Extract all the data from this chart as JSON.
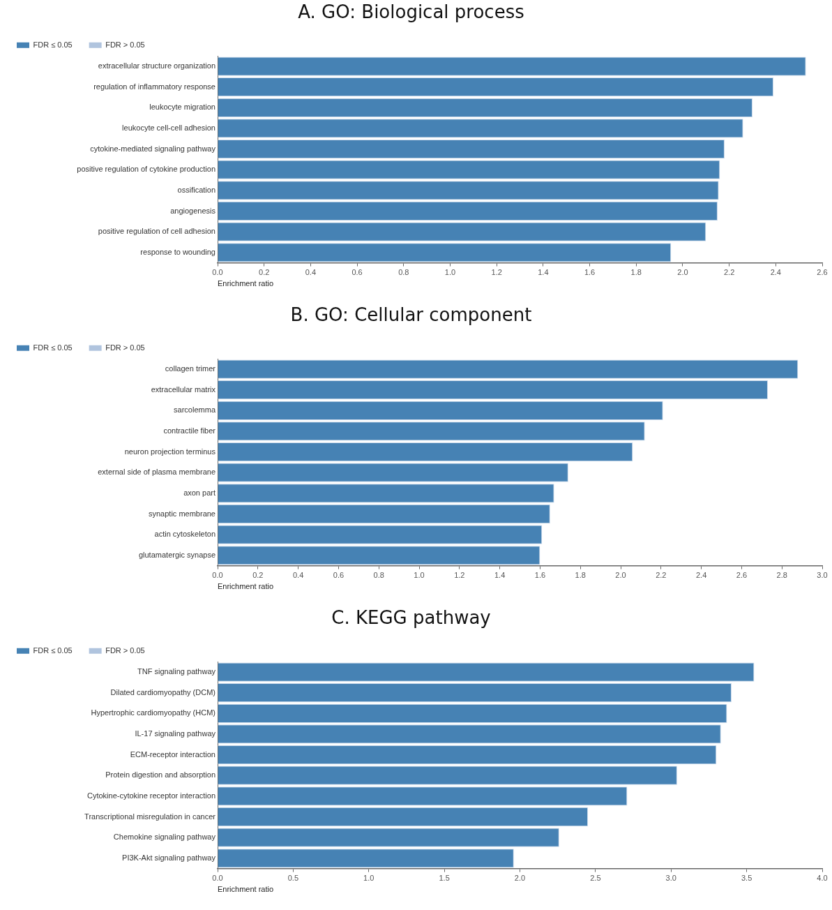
{
  "chart_data": [
    {
      "type": "bar",
      "orientation": "horizontal",
      "title": "A. GO: Biological process",
      "xlabel": "Enrichment ratio",
      "legend": "top left",
      "grid": false,
      "categories": [
        "extracellular structure organization",
        "regulation of inflammatory response",
        "leukocyte migration",
        "leukocyte cell-cell adhesion",
        "cytokine-mediated signaling pathway",
        "positive regulation of cytokine production",
        "ossification",
        "angiogenesis",
        "positive regulation of cell adhesion",
        "response to wounding"
      ],
      "series": [
        {
          "name": "FDR ≤ 0.05",
          "color": "#4682b4",
          "values": [
            2.53,
            2.39,
            2.3,
            2.26,
            2.18,
            2.16,
            2.155,
            2.15,
            2.1,
            1.95
          ]
        },
        {
          "name": "FDR > 0.05",
          "color": "#b0c4de",
          "values": [
            null,
            null,
            null,
            null,
            null,
            null,
            null,
            null,
            null,
            null
          ]
        }
      ],
      "xlim": [
        0,
        2.6
      ],
      "xticks": [
        {
          "value": 0,
          "label": "0.0"
        },
        {
          "value": 0.2,
          "label": "0.2"
        },
        {
          "value": 0.4,
          "label": "0.4"
        },
        {
          "value": 0.6,
          "label": "0.6"
        },
        {
          "value": 0.8,
          "label": "0.8"
        },
        {
          "value": 1,
          "label": "1.0"
        },
        {
          "value": 1.2,
          "label": "1.2"
        },
        {
          "value": 1.4,
          "label": "1.4"
        },
        {
          "value": 1.6,
          "label": "1.6"
        },
        {
          "value": 1.8,
          "label": "1.8"
        },
        {
          "value": 2,
          "label": "2.0"
        },
        {
          "value": 2.2,
          "label": "2.2"
        },
        {
          "value": 2.4,
          "label": "2.4"
        },
        {
          "value": 2.6,
          "label": "2.6"
        }
      ]
    },
    {
      "type": "bar",
      "orientation": "horizontal",
      "title": "B. GO: Cellular component",
      "xlabel": "Enrichment ratio",
      "legend": "top left",
      "grid": false,
      "categories": [
        "collagen trimer",
        "extracellular matrix",
        "sarcolemma",
        "contractile fiber",
        "neuron projection terminus",
        "external side of plasma membrane",
        "axon part",
        "synaptic membrane",
        "actin cytoskeleton",
        "glutamatergic synapse"
      ],
      "series": [
        {
          "name": "FDR ≤ 0.05",
          "color": "#4682b4",
          "values": [
            2.88,
            2.73,
            2.21,
            2.12,
            2.06,
            1.74,
            1.67,
            1.65,
            1.61,
            1.6
          ]
        },
        {
          "name": "FDR > 0.05",
          "color": "#b0c4de",
          "values": [
            null,
            null,
            null,
            null,
            null,
            null,
            null,
            null,
            null,
            null
          ]
        }
      ],
      "xlim": [
        0,
        3
      ],
      "xticks": [
        {
          "value": 0,
          "label": "0.0"
        },
        {
          "value": 0.2,
          "label": "0.2"
        },
        {
          "value": 0.4,
          "label": "0.4"
        },
        {
          "value": 0.6,
          "label": "0.6"
        },
        {
          "value": 0.8,
          "label": "0.8"
        },
        {
          "value": 1,
          "label": "1.0"
        },
        {
          "value": 1.2,
          "label": "1.2"
        },
        {
          "value": 1.4,
          "label": "1.4"
        },
        {
          "value": 1.6,
          "label": "1.6"
        },
        {
          "value": 1.8,
          "label": "1.8"
        },
        {
          "value": 2,
          "label": "2.0"
        },
        {
          "value": 2.2,
          "label": "2.2"
        },
        {
          "value": 2.4,
          "label": "2.4"
        },
        {
          "value": 2.6,
          "label": "2.6"
        },
        {
          "value": 2.8,
          "label": "2.8"
        },
        {
          "value": 3,
          "label": "3.0"
        }
      ]
    },
    {
      "type": "bar",
      "orientation": "horizontal",
      "title": "C. KEGG pathway",
      "xlabel": "Enrichment ratio",
      "legend": "top left",
      "grid": false,
      "categories": [
        "TNF signaling pathway",
        "Dilated cardiomyopathy (DCM)",
        "Hypertrophic cardiomyopathy (HCM)",
        "IL-17 signaling pathway",
        "ECM-receptor interaction",
        "Protein digestion and absorption",
        "Cytokine-cytokine receptor interaction",
        "Transcriptional misregulation in cancer",
        "Chemokine signaling pathway",
        "PI3K-Akt signaling pathway"
      ],
      "series": [
        {
          "name": "FDR ≤ 0.05",
          "color": "#4682b4",
          "values": [
            3.55,
            3.4,
            3.37,
            3.33,
            3.3,
            3.04,
            2.71,
            2.45,
            2.26,
            1.96
          ]
        },
        {
          "name": "FDR > 0.05",
          "color": "#b0c4de",
          "values": [
            null,
            null,
            null,
            null,
            null,
            null,
            null,
            null,
            null,
            null
          ]
        }
      ],
      "xlim": [
        0,
        4
      ],
      "xticks": [
        {
          "value": 0,
          "label": "0.0"
        },
        {
          "value": 0.5,
          "label": "0.5"
        },
        {
          "value": 1,
          "label": "1.0"
        },
        {
          "value": 1.5,
          "label": "1.5"
        },
        {
          "value": 2,
          "label": "2.0"
        },
        {
          "value": 2.5,
          "label": "2.5"
        },
        {
          "value": 3,
          "label": "3.0"
        },
        {
          "value": 3.5,
          "label": "3.5"
        },
        {
          "value": 4,
          "label": "4.0"
        }
      ]
    }
  ]
}
